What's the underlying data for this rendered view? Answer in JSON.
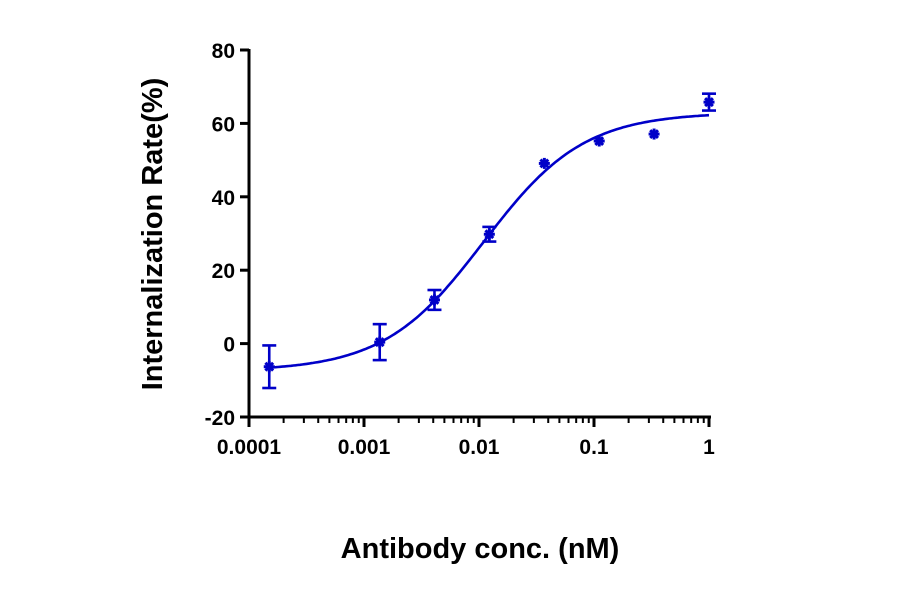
{
  "chart_data": {
    "type": "scatter",
    "title": "",
    "xlabel": "Antibody conc. (nM)",
    "ylabel": "Internalization Rate(%)",
    "xscale": "log",
    "xlim": [
      0.0001,
      1
    ],
    "ylim": [
      -20,
      80
    ],
    "xticks": [
      0.0001,
      0.001,
      0.01,
      0.1,
      1
    ],
    "xtick_labels": [
      "0.0001",
      "0.001",
      "0.01",
      "0.1",
      "1"
    ],
    "yticks": [
      -20,
      0,
      20,
      40,
      60,
      80
    ],
    "ytick_labels": [
      "-20",
      "0",
      "20",
      "40",
      "60",
      "80"
    ],
    "grid": false,
    "legend": "none",
    "color": "#0000C8",
    "series": [
      {
        "x": [
          0.00015,
          0.00137,
          0.0041,
          0.0123,
          0.037,
          0.111,
          0.333,
          1
        ],
        "y": [
          -6.3,
          0.4,
          11.9,
          29.8,
          49.1,
          55.2,
          57.1,
          65.8
        ],
        "error": [
          5.8,
          4.9,
          2.7,
          2.0,
          0.8,
          0.8,
          0.6,
          2.3
        ]
      }
    ],
    "fit": {
      "model": "4PL",
      "bottom": -7.5,
      "top": 63,
      "ec50": 0.011,
      "hill": 1.0
    }
  }
}
